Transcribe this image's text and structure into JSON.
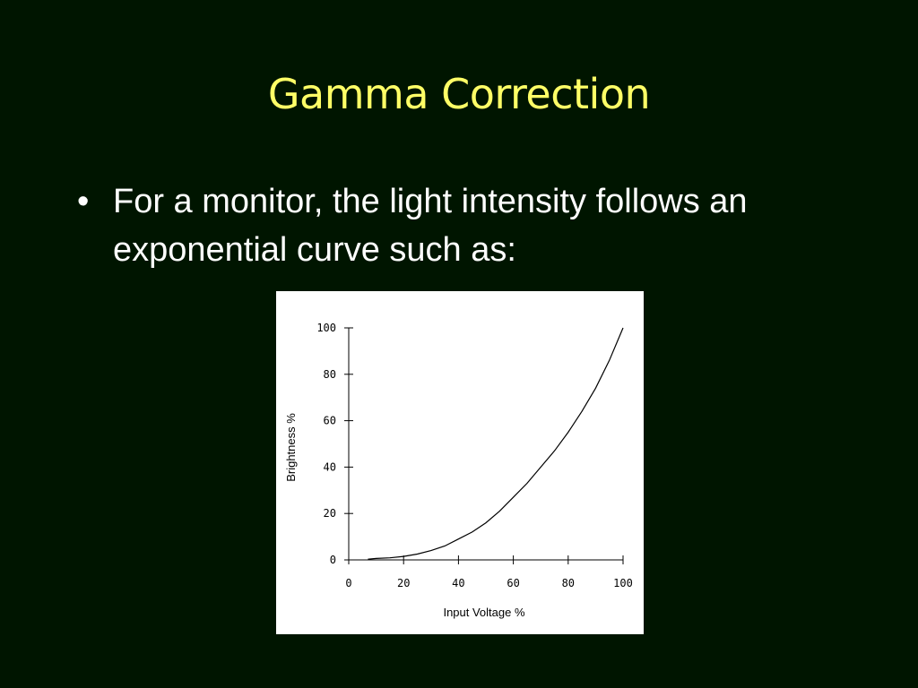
{
  "slide": {
    "title": "Gamma Correction",
    "bullets": [
      {
        "marker": "•",
        "text": "For a monitor, the light intensity follows an exponential curve such as:"
      }
    ]
  },
  "colors": {
    "background": "#001500",
    "title": "#ffff66",
    "body_text": "#ffffff",
    "chart_background": "#ffffff",
    "chart_ink": "#000000"
  },
  "chart_data": {
    "type": "line",
    "title": "",
    "xlabel": "Input Voltage %",
    "ylabel": "Brightness %",
    "xlim": [
      0,
      100
    ],
    "ylim": [
      0,
      100
    ],
    "x_ticks": [
      "0",
      "20",
      "40",
      "60",
      "80",
      "100"
    ],
    "y_ticks": [
      "0",
      "20",
      "40",
      "60",
      "80",
      "100"
    ],
    "grid": false,
    "legend": "none",
    "series": [
      {
        "x": [
          7,
          10,
          15,
          20,
          25,
          30,
          35,
          40,
          45,
          50,
          55,
          60,
          65,
          70,
          75,
          80,
          85,
          90,
          95,
          100
        ],
        "y": [
          0.3,
          0.6,
          0.9,
          1.5,
          2.5,
          4,
          6,
          9,
          12,
          16,
          21,
          27,
          33,
          40,
          47,
          55,
          64,
          74,
          86,
          100
        ]
      }
    ]
  }
}
